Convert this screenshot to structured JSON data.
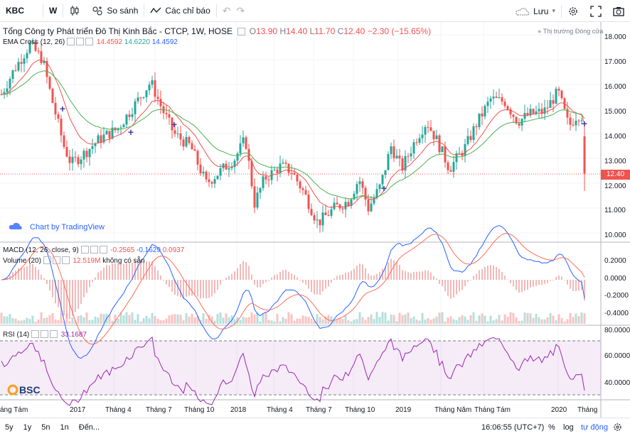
{
  "toolbar": {
    "symbol": "KBC",
    "interval": "W",
    "compare_label": "So sánh",
    "indicators_label": "Các chỉ báo",
    "save_label": "Lưu"
  },
  "header": {
    "title": "Tổng Công ty Phát triển Đô Thị Kinh Bắc - CTCP, 1W, HOSE",
    "o_label": "O",
    "o_value": "13.90",
    "h_label": "H",
    "h_value": "14.40",
    "l_label": "L",
    "l_value": "11.70",
    "c_label": "C",
    "c_value": "12.40",
    "change": "−2.30 (−15.65%)",
    "market_status": "Thị trường Đóng cửa"
  },
  "ema": {
    "label": "EMA Cross (12, 26)",
    "v1": "14.4592",
    "v2": "14.6220",
    "v3": "14.4592"
  },
  "macd": {
    "label": "MACD (12, 26, close, 9)",
    "v1": "-0.2565",
    "v2": "-0.1629",
    "v3": "0.0937"
  },
  "volume": {
    "label": "Volume (20)",
    "value": "12.519M",
    "note": "không có sẵn"
  },
  "rsi": {
    "label": "RSI (14)",
    "value": "33.1687"
  },
  "watermark": "Chart by TradingView",
  "brand": "BSC",
  "price_tag": "12.40",
  "price_axis": [
    "18.000",
    "17.000",
    "16.000",
    "15.000",
    "14.000",
    "13.000",
    "12.000",
    "11.000",
    "10.000"
  ],
  "macd_axis": [
    "0.2000",
    "0.0000",
    "-0.2000",
    "-0.4000"
  ],
  "rsi_axis": [
    "80.0000",
    "60.0000",
    "40.0000"
  ],
  "time_axis": [
    "áng Tám",
    "2017",
    "Tháng 4",
    "Tháng 7",
    "Tháng 10",
    "2018",
    "Tháng 4",
    "Tháng 7",
    "Tháng 10",
    "2019",
    "Tháng Năm",
    "Tháng Tám",
    "2020",
    "Tháng"
  ],
  "bottom": {
    "ranges": [
      "5y",
      "1y",
      "5n",
      "1n",
      "Đến..."
    ],
    "clock": "16:06:55 (UTC+7)",
    "percent": "%",
    "log": "log",
    "auto": "tự động"
  },
  "colors": {
    "up": "#26a69a",
    "down": "#ef5350",
    "ema_fast": "#ef5350",
    "ema_slow": "#4caf50",
    "macd": "#2962ff",
    "signal": "#ff6d5a",
    "rsi": "#9c27b0"
  }
}
